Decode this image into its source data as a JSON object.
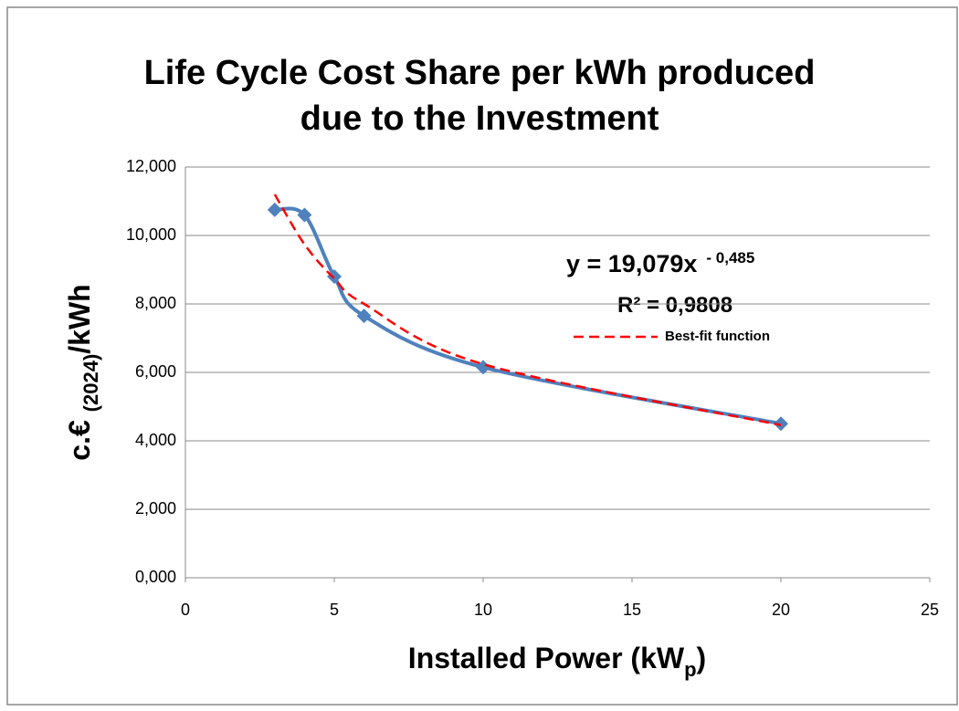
{
  "chart_data": {
    "type": "line",
    "title": [
      "Life Cycle Cost Share per kWh produced",
      "due to the Investment"
    ],
    "x_label": [
      "Installed Power (kW",
      "p",
      ")"
    ],
    "y_label": [
      "c.€ ",
      "(2024)",
      "/kWh"
    ],
    "annotations": {
      "equation": "y = 19,079x",
      "exponent": "- 0,485",
      "r_squared": "R² = 0,9808"
    },
    "x": [
      3,
      4,
      5,
      6,
      10,
      20
    ],
    "series": [
      {
        "color": "#4f81bd",
        "values": [
          10.75,
          10.6,
          8.8,
          7.65,
          6.15,
          4.5
        ],
        "marker": "diamond",
        "smooth": true
      },
      {
        "name": "Best-fit function",
        "color": "#ff0000",
        "values": [
          11.2,
          9.74,
          8.74,
          8.0,
          6.24,
          4.46
        ],
        "dash": true,
        "smooth": true
      }
    ],
    "xlim": [
      0,
      25
    ],
    "xticks": [
      0,
      5,
      10,
      15,
      20,
      25
    ],
    "ylim": [
      0,
      12
    ],
    "yticks": [
      {
        "value": 0,
        "label": "0,000"
      },
      {
        "value": 2,
        "label": "2,000"
      },
      {
        "value": 4,
        "label": "4,000"
      },
      {
        "value": 6,
        "label": "6,000"
      },
      {
        "value": 8,
        "label": "8,000"
      },
      {
        "value": 10,
        "label": "10,000"
      },
      {
        "value": 12,
        "label": "12,000"
      }
    ],
    "grid": true
  }
}
